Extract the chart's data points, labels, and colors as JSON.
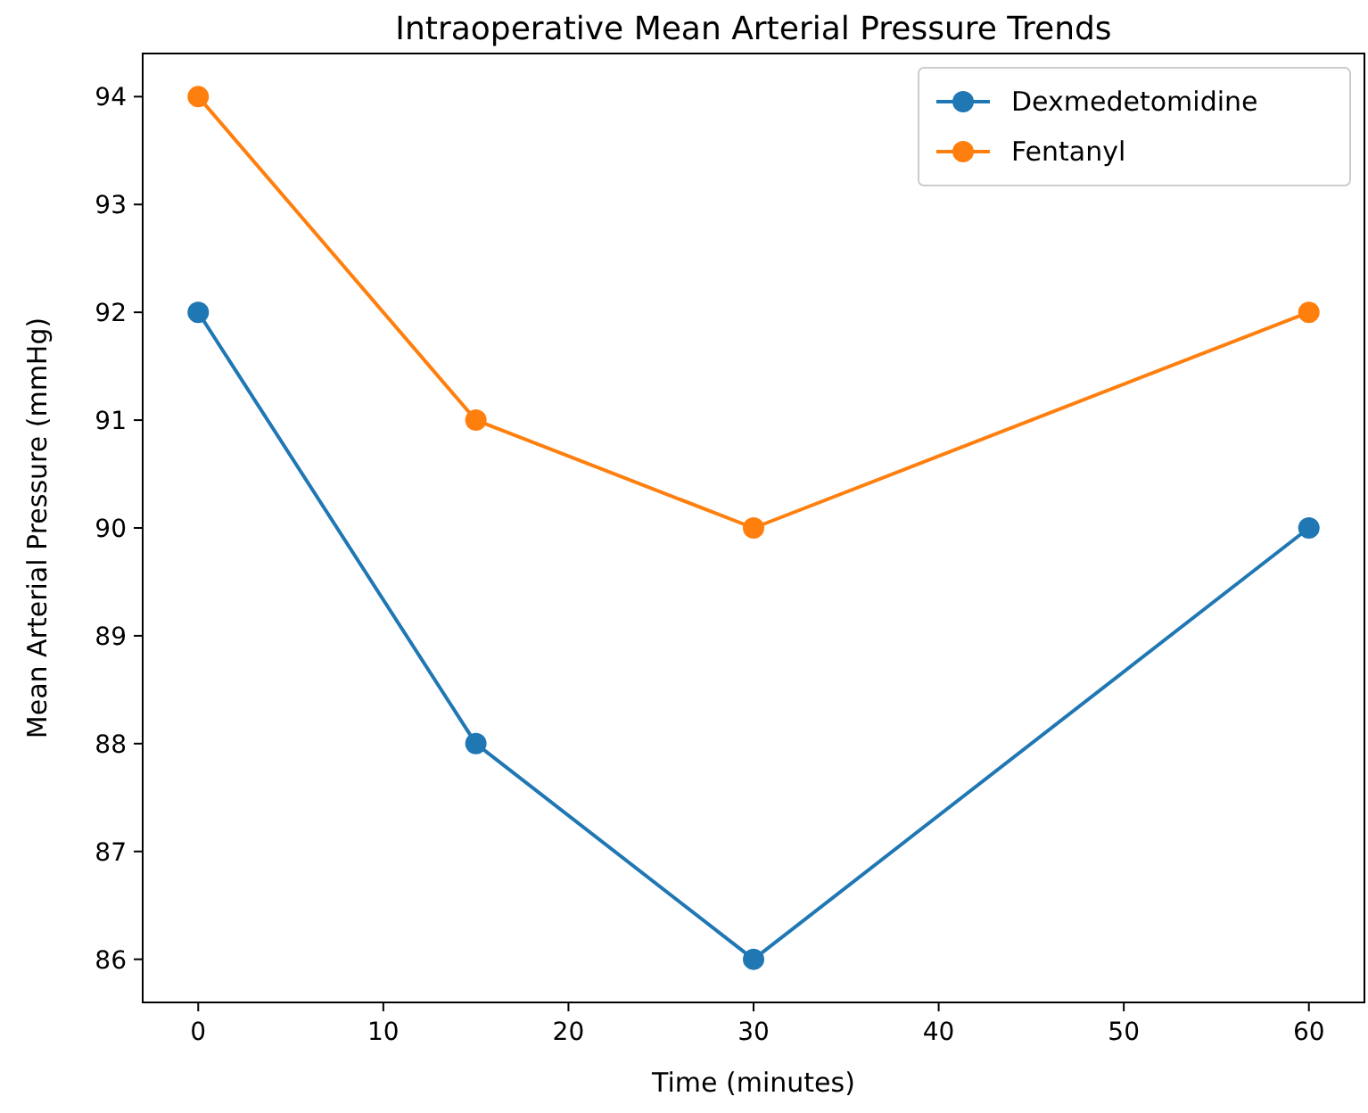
{
  "chart_data": {
    "type": "line",
    "title": "Intraoperative Mean Arterial Pressure Trends",
    "xlabel": "Time (minutes)",
    "ylabel": "Mean Arterial Pressure (mmHg)",
    "x": [
      0,
      15,
      30,
      60
    ],
    "series": [
      {
        "name": "Dexmedetomidine",
        "color": "#1f77b4",
        "values": [
          92,
          88,
          86,
          90
        ]
      },
      {
        "name": "Fentanyl",
        "color": "#ff7f0e",
        "values": [
          94,
          91,
          90,
          92
        ]
      }
    ],
    "xlim": [
      -3,
      63
    ],
    "xticks": [
      0,
      10,
      20,
      30,
      40,
      50,
      60
    ],
    "ylim": [
      85.6,
      94.4
    ],
    "yticks": [
      86,
      87,
      88,
      89,
      90,
      91,
      92,
      93,
      94
    ],
    "grid": false,
    "legend": "top right",
    "marker": "circle",
    "line_style": "solid"
  }
}
